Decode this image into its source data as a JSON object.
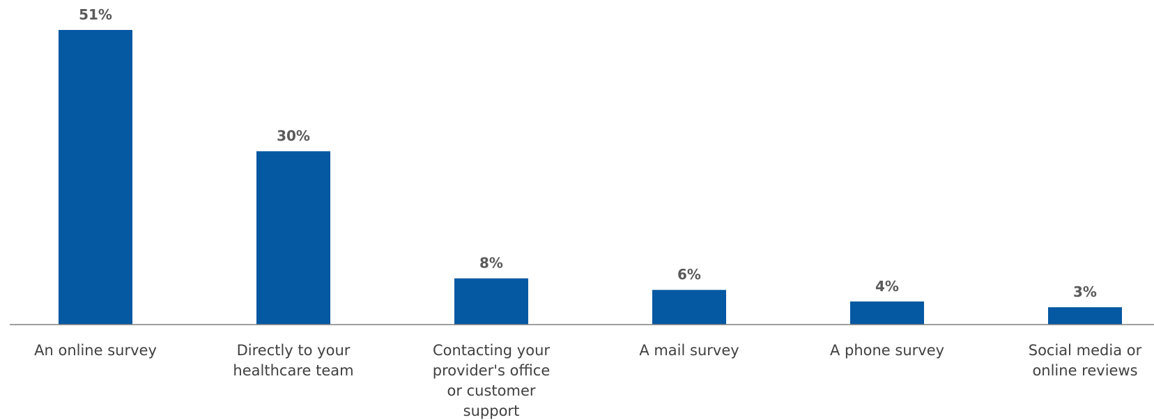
{
  "chart_data": {
    "type": "bar",
    "categories": [
      [
        "An online survey"
      ],
      [
        "Directly to your",
        "healthcare team"
      ],
      [
        "Contacting your",
        "provider's office",
        "or customer",
        "support"
      ],
      [
        "A mail survey"
      ],
      [
        "A phone survey"
      ],
      [
        "Social media or",
        "online reviews"
      ]
    ],
    "values": [
      51,
      30,
      8,
      6,
      4,
      3
    ],
    "value_labels": [
      "51%",
      "30%",
      "8%",
      "6%",
      "4%",
      "3%"
    ],
    "title": "",
    "xlabel": "",
    "ylabel": "",
    "ylim": [
      0,
      51
    ],
    "grid": false,
    "legend": "none",
    "colors": {
      "bar": "#0558a2",
      "value_label": "#5a5a5a",
      "category_label": "#404040",
      "axis": "#7f7f7f"
    }
  }
}
